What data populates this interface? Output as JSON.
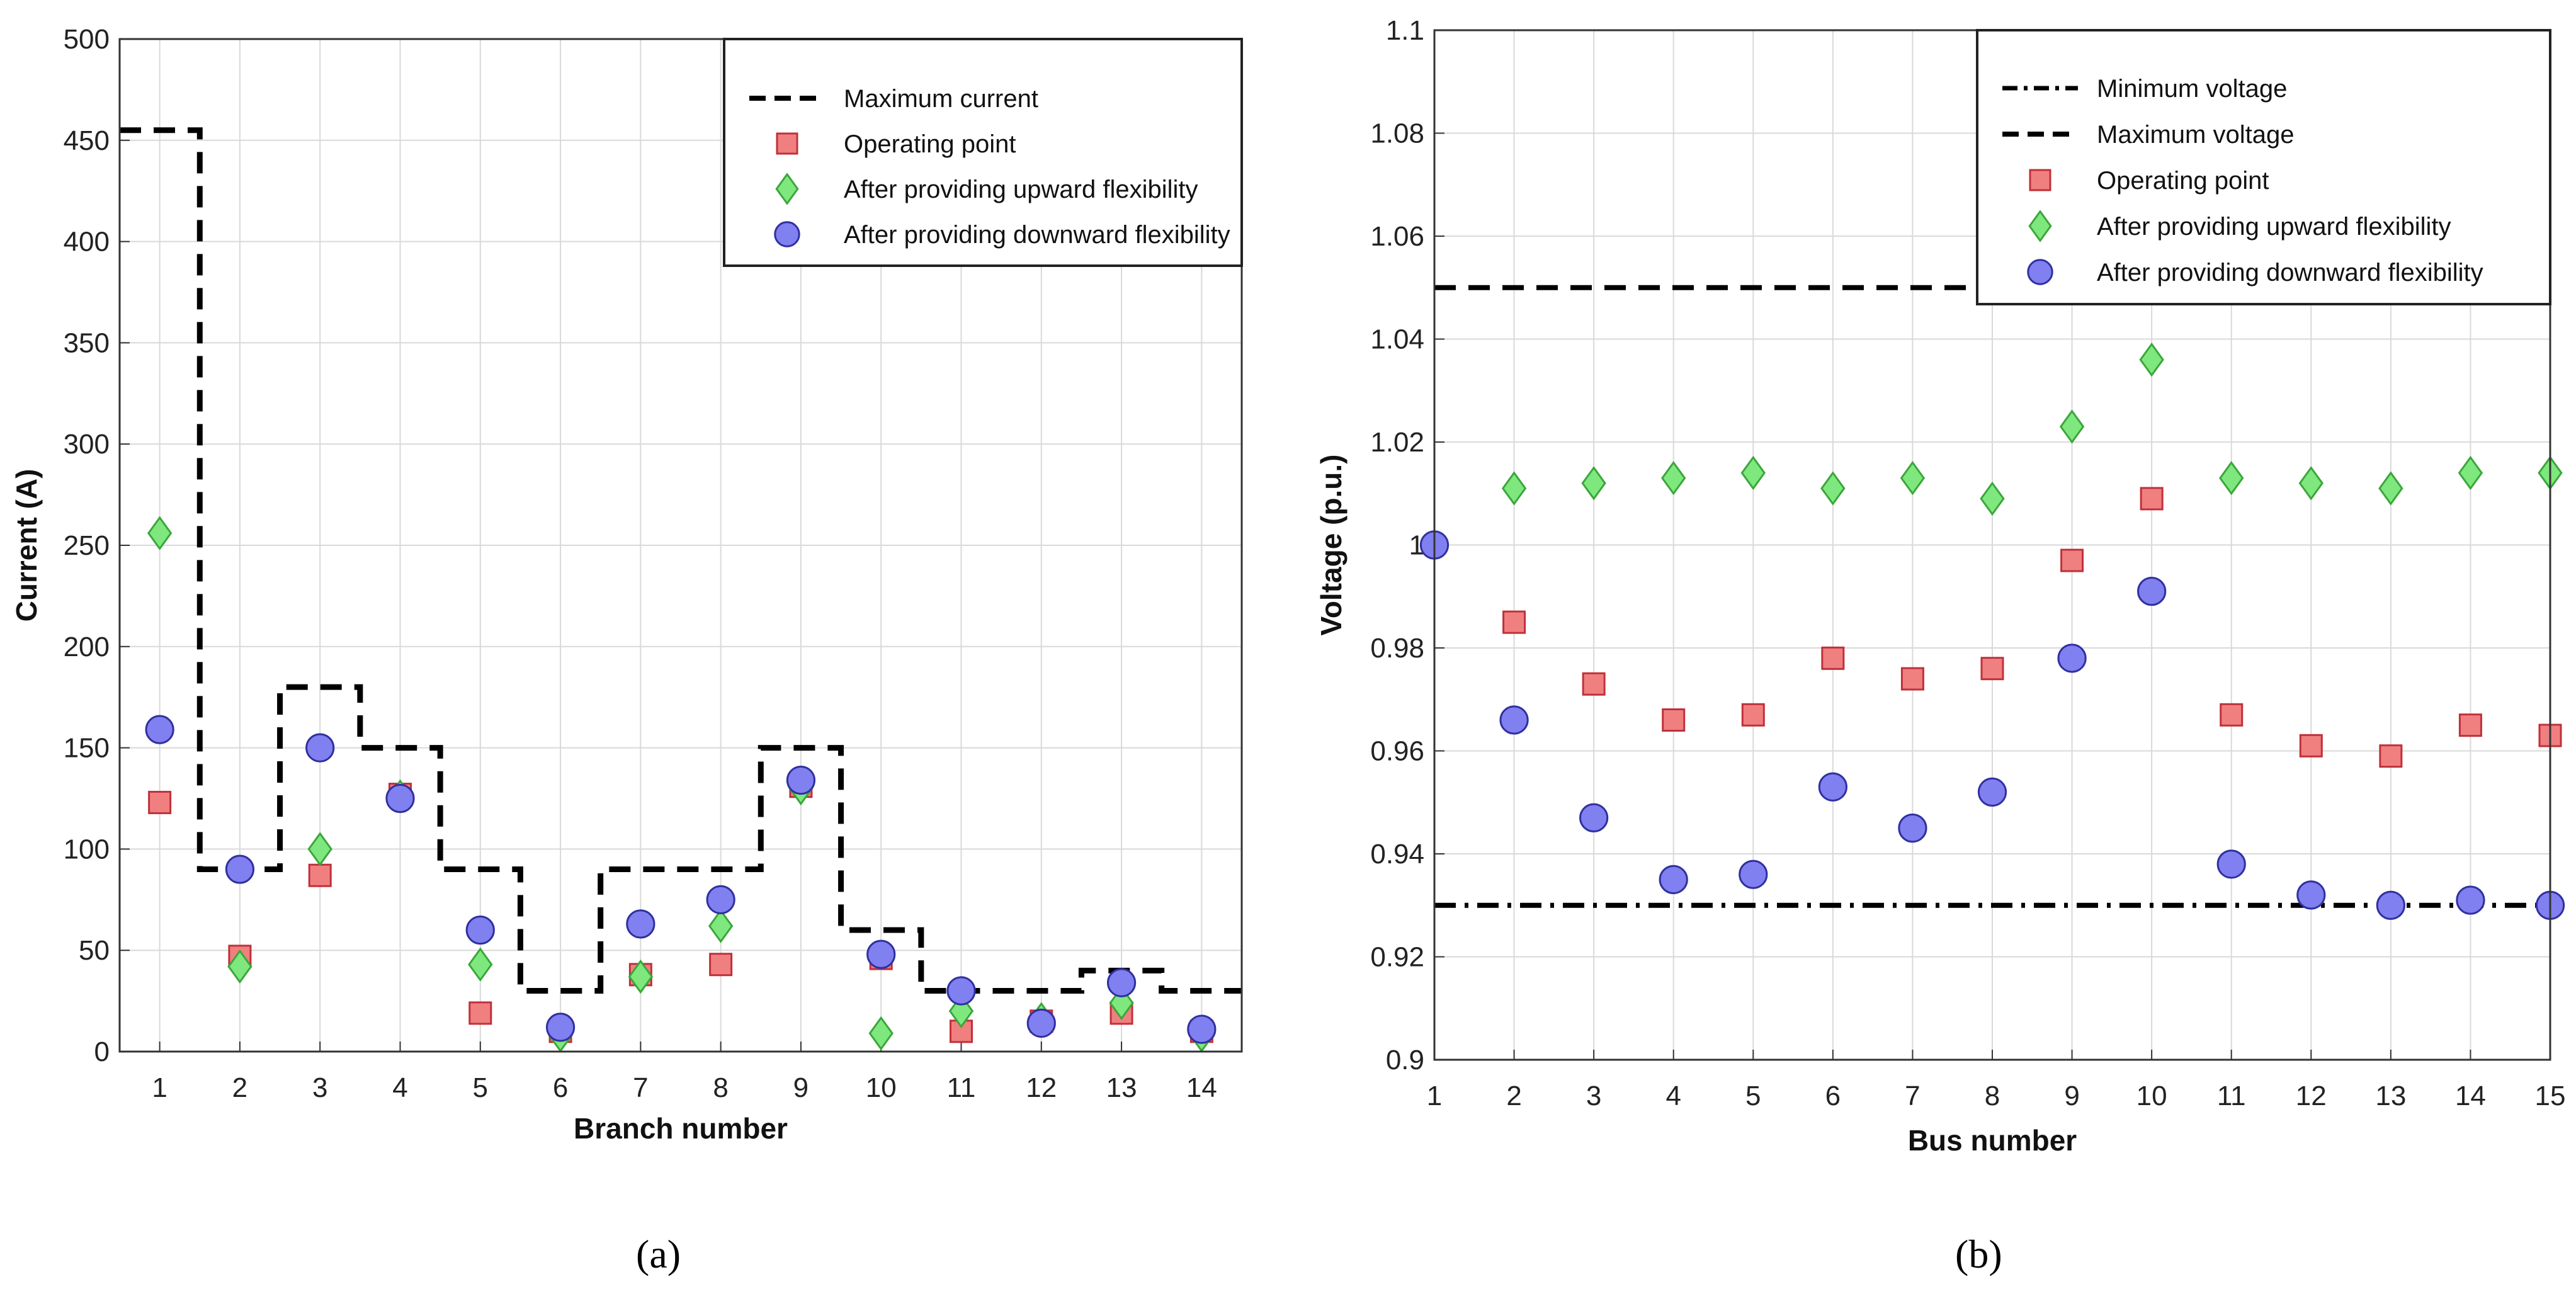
{
  "panels": [
    {
      "label": "(a)",
      "chart_data": {
        "type": "scatter",
        "xlabel": "Branch number",
        "ylabel": "Current (A)",
        "xlim": [
          0.5,
          14.5
        ],
        "ylim": [
          0,
          500
        ],
        "x_ticks": [
          1,
          2,
          3,
          4,
          5,
          6,
          7,
          8,
          9,
          10,
          11,
          12,
          13,
          14
        ],
        "y_ticks": [
          0,
          50,
          100,
          150,
          200,
          250,
          300,
          350,
          400,
          450,
          500
        ],
        "grid": true,
        "legend_position": "top-right",
        "series": [
          {
            "name": "Maximum current",
            "kind": "step-dashed",
            "color": "#000000",
            "x": [
              1,
              2,
              3,
              4,
              5,
              6,
              7,
              8,
              9,
              10,
              11,
              12,
              13,
              14
            ],
            "values": [
              455,
              90,
              180,
              150,
              90,
              30,
              90,
              90,
              150,
              60,
              30,
              30,
              40,
              30
            ]
          },
          {
            "name": "Operating point",
            "kind": "square",
            "color": "#f08080",
            "stroke": "#c0303a",
            "x": [
              1,
              2,
              3,
              4,
              5,
              6,
              7,
              8,
              9,
              10,
              11,
              12,
              13,
              14
            ],
            "values": [
              123,
              47,
              87,
              127,
              19,
              10,
              38,
              43,
              131,
              46,
              10,
              15,
              19,
              10
            ]
          },
          {
            "name": "After providing upward flexibility",
            "kind": "diamond",
            "color": "#7ee87e",
            "stroke": "#3aa63a",
            "x": [
              1,
              2,
              3,
              4,
              5,
              6,
              7,
              8,
              9,
              10,
              11,
              12,
              13,
              14
            ],
            "values": [
              256,
              42,
              100,
              126,
              43,
              8,
              37,
              62,
              130,
              9,
              20,
              16,
              24,
              8
            ]
          },
          {
            "name": "After providing downward flexibility",
            "kind": "circle",
            "color": "#8080f0",
            "stroke": "#3030a0",
            "x": [
              1,
              2,
              3,
              4,
              5,
              6,
              7,
              8,
              9,
              10,
              11,
              12,
              13,
              14
            ],
            "values": [
              159,
              90,
              150,
              125,
              60,
              12,
              63,
              75,
              134,
              48,
              30,
              14,
              34,
              11
            ]
          }
        ]
      }
    },
    {
      "label": "(b)",
      "chart_data": {
        "type": "scatter",
        "xlabel": "Bus number",
        "ylabel": "Voltage  (p.u.)",
        "xlim": [
          1,
          15
        ],
        "ylim": [
          0.9,
          1.1
        ],
        "x_ticks": [
          1,
          2,
          3,
          4,
          5,
          6,
          7,
          8,
          9,
          10,
          11,
          12,
          13,
          14,
          15
        ],
        "y_ticks": [
          "0.9",
          "0.92",
          "0.94",
          "0.96",
          "0.98",
          "1",
          "1.02",
          "1.04",
          "1.06",
          "1.08",
          "1.1"
        ],
        "grid": true,
        "legend_position": "top-right",
        "series": [
          {
            "name": "Minimum voltage",
            "kind": "hline-dashdot",
            "color": "#000000",
            "value": 0.93
          },
          {
            "name": "Maximum voltage",
            "kind": "hline-dashed",
            "color": "#000000",
            "value": 1.05
          },
          {
            "name": "Operating point",
            "kind": "square",
            "color": "#f08080",
            "stroke": "#c0303a",
            "x": [
              2,
              3,
              4,
              5,
              6,
              7,
              8,
              9,
              10,
              11,
              12,
              13,
              14,
              15
            ],
            "values": [
              0.985,
              0.973,
              0.966,
              0.967,
              0.978,
              0.974,
              0.976,
              0.997,
              1.009,
              0.967,
              0.961,
              0.959,
              0.965,
              0.963
            ]
          },
          {
            "name": "After providing upward flexibility",
            "kind": "diamond",
            "color": "#7ee87e",
            "stroke": "#3aa63a",
            "x": [
              2,
              3,
              4,
              5,
              6,
              7,
              8,
              9,
              10,
              11,
              12,
              13,
              14,
              15
            ],
            "values": [
              1.011,
              1.012,
              1.013,
              1.014,
              1.011,
              1.013,
              1.009,
              1.023,
              1.036,
              1.013,
              1.012,
              1.011,
              1.014,
              1.014
            ]
          },
          {
            "name": "After providing downward flexibility",
            "kind": "circle",
            "color": "#8080f0",
            "stroke": "#3030a0",
            "x": [
              1,
              2,
              3,
              4,
              5,
              6,
              7,
              8,
              9,
              10,
              11,
              12,
              13,
              14,
              15
            ],
            "values": [
              1.0,
              0.966,
              0.947,
              0.935,
              0.936,
              0.953,
              0.945,
              0.952,
              0.978,
              0.991,
              0.938,
              0.932,
              0.93,
              0.931,
              0.93
            ]
          }
        ]
      }
    }
  ]
}
